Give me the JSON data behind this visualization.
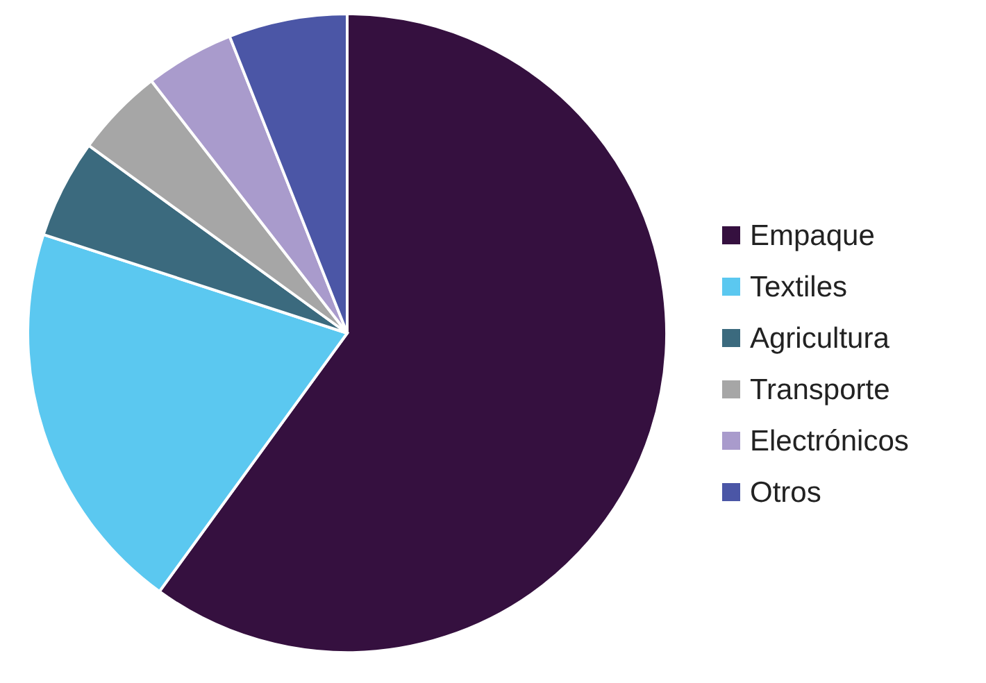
{
  "chart_data": {
    "type": "pie",
    "categories": [
      "Empaque",
      "Textiles",
      "Agricultura",
      "Transporte",
      "Electrónicos",
      "Otros"
    ],
    "values": [
      60,
      20,
      5,
      4.5,
      4.5,
      6
    ],
    "colors": [
      "#35103f",
      "#5bc8f0",
      "#3b6a7e",
      "#a6a6a6",
      "#a99bcc",
      "#4b56a6"
    ],
    "legend": "right"
  }
}
